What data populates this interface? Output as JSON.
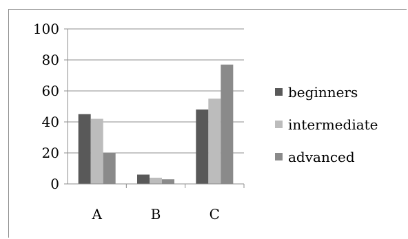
{
  "chart_data": {
    "type": "bar",
    "title": "",
    "xlabel": "",
    "ylabel": "",
    "categories": [
      "A",
      "B",
      "C"
    ],
    "ylim": [
      0,
      100
    ],
    "yticks": [
      "0",
      "20",
      "40",
      "60",
      "80",
      "100"
    ],
    "grid": true,
    "legend_position": "right",
    "series": [
      {
        "name": "beginners",
        "color": "#595959",
        "values": [
          45,
          6,
          48
        ]
      },
      {
        "name": "intermediate",
        "color": "#bcbcbc",
        "values": [
          42,
          4,
          55
        ]
      },
      {
        "name": "advanced",
        "color": "#8a8a8a",
        "values": [
          20,
          3,
          77
        ]
      }
    ]
  }
}
